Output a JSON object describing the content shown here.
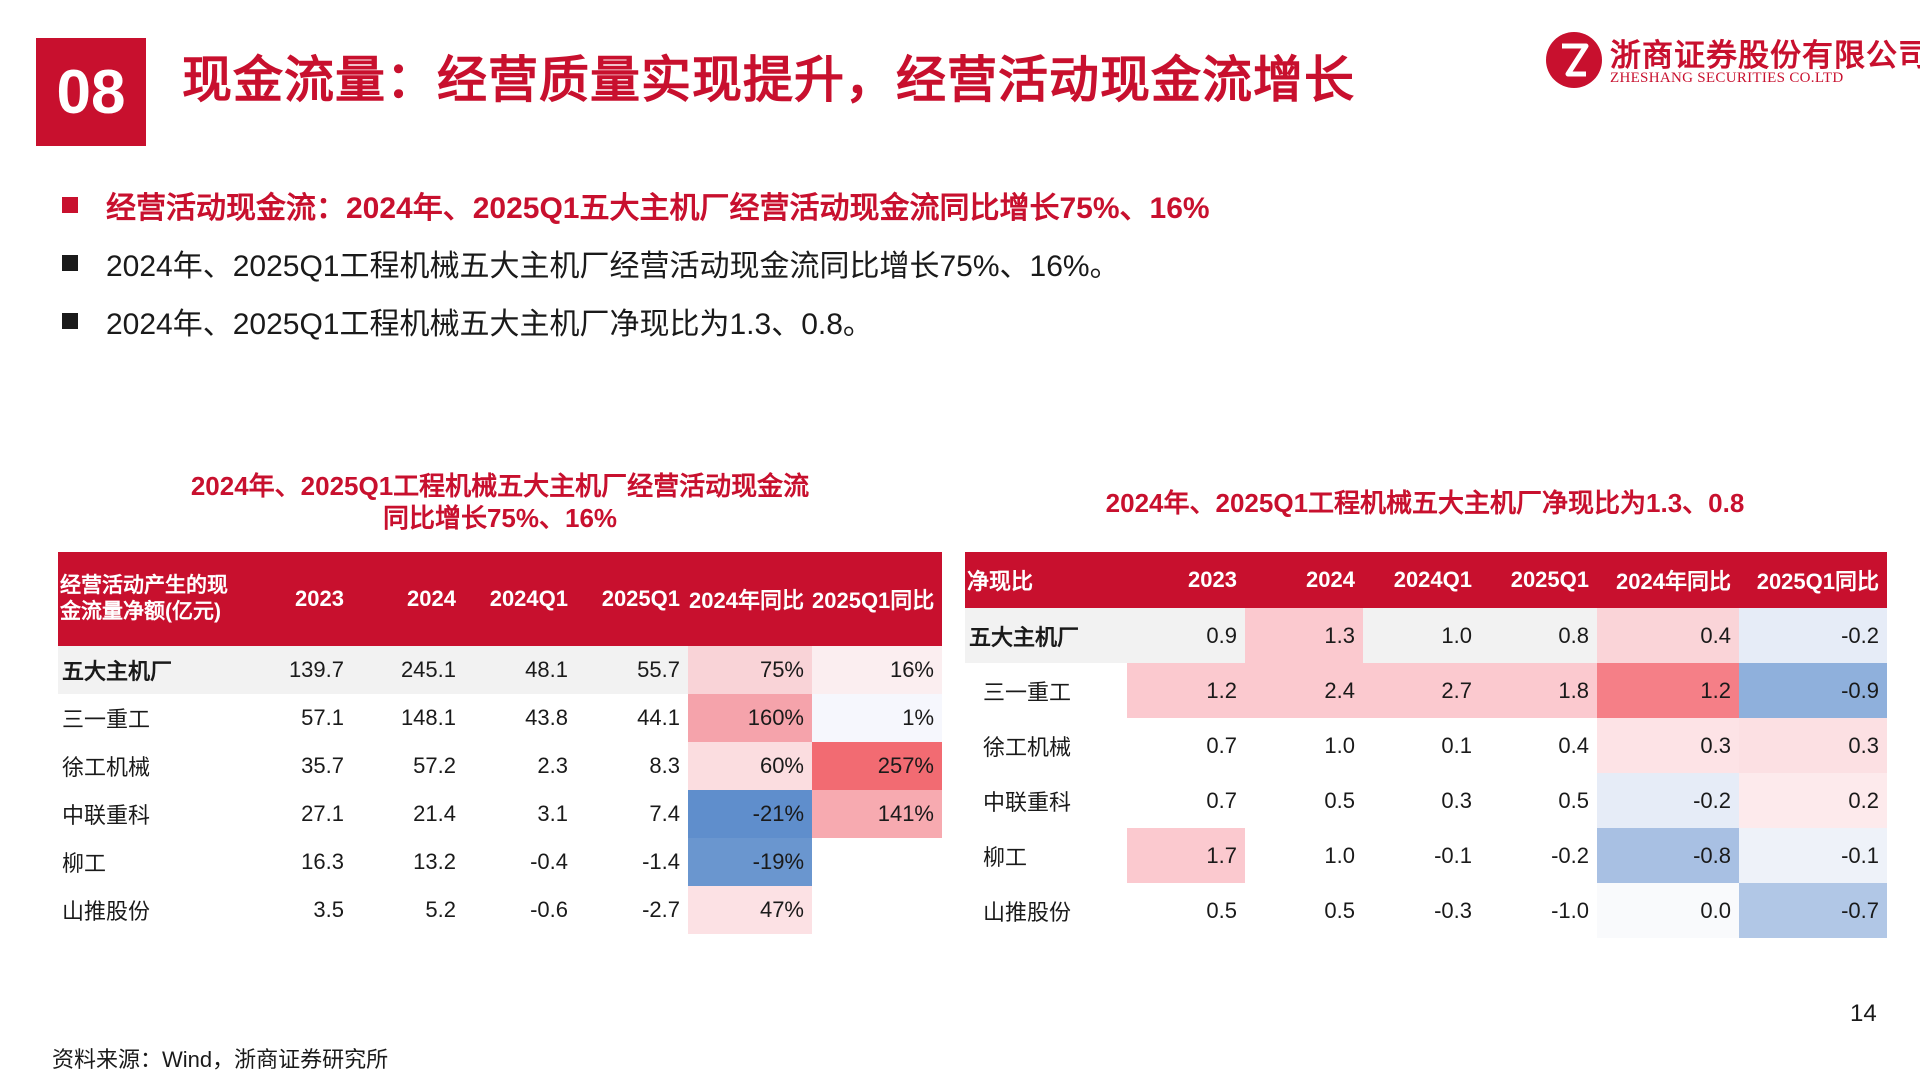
{
  "header": {
    "section_number": "08",
    "title": "现金流量：经营质量实现提升，经营活动现金流增长"
  },
  "logo": {
    "name_cn": "浙商证券股份有限公司",
    "name_en": "ZHESHANG SECURITIES CO.LTD",
    "color": "#c8102e"
  },
  "bullets": [
    {
      "text": "经营活动现金流：2024年、2025Q1五大主机厂经营活动现金流同比增长75%、16%",
      "highlight": true
    },
    {
      "text": "2024年、2025Q1工程机械五大主机厂经营活动现金流同比增长75%、16%。",
      "highlight": false
    },
    {
      "text": "2024年、2025Q1工程机械五大主机厂净现比为1.3、0.8。",
      "highlight": false
    }
  ],
  "table1": {
    "title_line1": "2024年、2025Q1工程机械五大主机厂经营活动现金流",
    "title_line2": "同比增长75%、16%",
    "headers": [
      "经营活动产生的现金流量净额(亿元)",
      "2023",
      "2024",
      "2024Q1",
      "2025Q1",
      "2024年同比",
      "2025Q1同比"
    ],
    "rows": [
      {
        "name": "五大主机厂",
        "values": [
          "139.7",
          "245.1",
          "48.1",
          "55.7",
          "75%",
          "16%"
        ],
        "total": true
      },
      {
        "name": "三一重工",
        "values": [
          "57.1",
          "148.1",
          "43.8",
          "44.1",
          "160%",
          "1%"
        ]
      },
      {
        "name": "徐工机械",
        "values": [
          "35.7",
          "57.2",
          "2.3",
          "8.3",
          "60%",
          "257%"
        ]
      },
      {
        "name": "中联重科",
        "values": [
          "27.1",
          "21.4",
          "3.1",
          "7.4",
          "-21%",
          "141%"
        ]
      },
      {
        "name": "柳工",
        "values": [
          "16.3",
          "13.2",
          "-0.4",
          "-1.4",
          "-19%",
          ""
        ]
      },
      {
        "name": "山推股份",
        "values": [
          "3.5",
          "5.2",
          "-0.6",
          "-2.7",
          "47%",
          ""
        ]
      }
    ],
    "heat": [
      [
        "",
        "",
        "",
        "",
        "#f9d3d7",
        "#fbeef0"
      ],
      [
        "",
        "",
        "",
        "",
        "#f5a3ab",
        "#f6f7fd"
      ],
      [
        "",
        "",
        "",
        "",
        "#fbdde0",
        "#f26b72"
      ],
      [
        "",
        "",
        "",
        "",
        "#5f8ecc",
        "#f7aab0"
      ],
      [
        "",
        "",
        "",
        "",
        "#6a96cf",
        ""
      ],
      [
        "",
        "",
        "",
        "",
        "#fce1e4",
        ""
      ]
    ]
  },
  "table2": {
    "title": "2024年、2025Q1工程机械五大主机厂净现比为1.3、0.8",
    "headers": [
      "净现比",
      "2023",
      "2024",
      "2024Q1",
      "2025Q1",
      "2024年同比",
      "2025Q1同比"
    ],
    "rows": [
      {
        "name": "五大主机厂",
        "values": [
          "0.9",
          "1.3",
          "1.0",
          "0.8",
          "0.4",
          "-0.2"
        ],
        "total": true
      },
      {
        "name": "三一重工",
        "values": [
          "1.2",
          "2.4",
          "2.7",
          "1.8",
          "1.2",
          "-0.9"
        ]
      },
      {
        "name": "徐工机械",
        "values": [
          "0.7",
          "1.0",
          "0.1",
          "0.4",
          "0.3",
          "0.3"
        ]
      },
      {
        "name": "中联重科",
        "values": [
          "0.7",
          "0.5",
          "0.3",
          "0.5",
          "-0.2",
          "0.2"
        ]
      },
      {
        "name": "柳工",
        "values": [
          "1.7",
          "1.0",
          "-0.1",
          "-0.2",
          "-0.8",
          "-0.1"
        ]
      },
      {
        "name": "山推股份",
        "values": [
          "0.5",
          "0.5",
          "-0.3",
          "-1.0",
          "0.0",
          "-0.7"
        ]
      }
    ],
    "heat": [
      [
        "",
        "#fbc9cf",
        "",
        "",
        "#fad4d8",
        "#e6ecf7"
      ],
      [
        "#fbc9cf",
        "#fbc9cf",
        "#fbc9cf",
        "#fbc9cf",
        "#f57f87",
        "#8fb0dc"
      ],
      [
        "",
        "",
        "",
        "",
        "#fde3e6",
        "#fce0e3"
      ],
      [
        "",
        "",
        "",
        "",
        "#e6ecf7",
        "#fdeaec"
      ],
      [
        "#fbc9cf",
        "",
        "",
        "",
        "#a8c0e3",
        "#eef2f9"
      ],
      [
        "",
        "",
        "",
        "",
        "#f9fafc",
        "#b1c7e6"
      ]
    ]
  },
  "footer": {
    "source": "资料来源：Wind，浙商证券研究所",
    "page_number": "14"
  }
}
